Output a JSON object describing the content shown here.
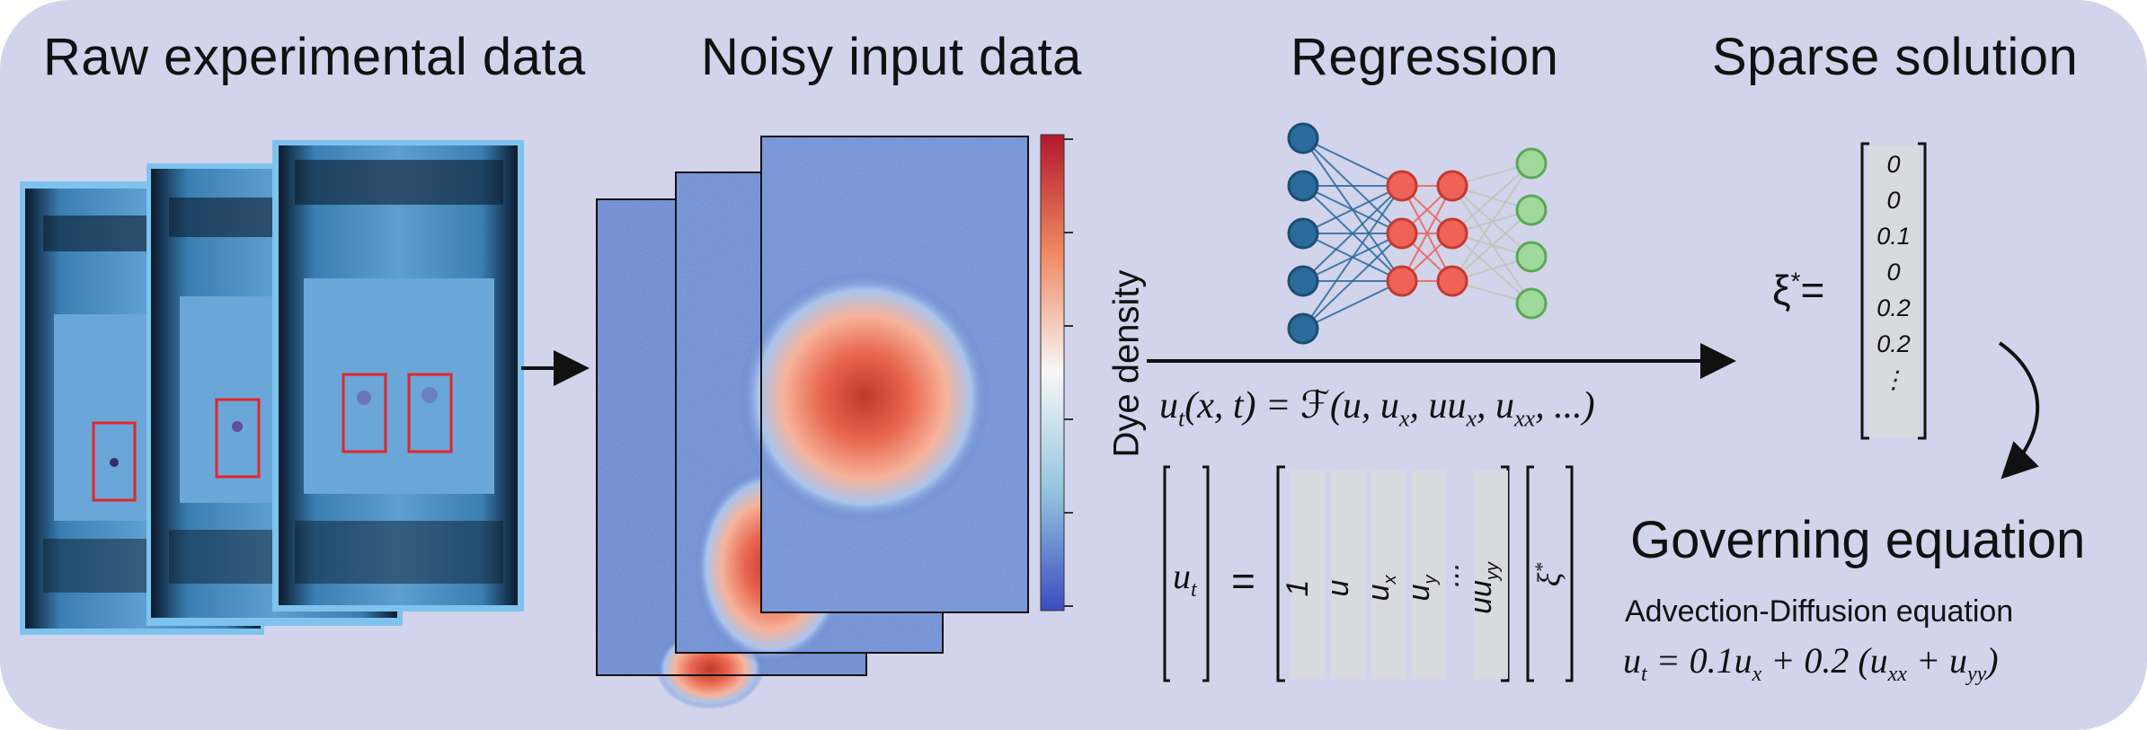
{
  "titles": {
    "raw": "Raw experimental data",
    "noisy": "Noisy input data",
    "regression": "Regression",
    "sparse": "Sparse solution"
  },
  "colorbar": {
    "label": "Dye density",
    "colors": {
      "high": "#b2182b",
      "mid": "#f7f7f7",
      "low": "#3b4cc0"
    }
  },
  "pde": {
    "lhs": "u",
    "lhs_sub": "t",
    "args": "(x, t) = ",
    "script_f": "ℱ",
    "rhs": "(u, u",
    "rhs_sub1": "x",
    "rhs_mid": ", uu",
    "rhs_sub2": "x",
    "rhs_mid2": ", u",
    "rhs_sub3": "xx",
    "rhs_end": ", ...)"
  },
  "system": {
    "lhs_label": "u",
    "lhs_sub": "t",
    "equals": "=",
    "library": [
      {
        "label": "1",
        "sub": ""
      },
      {
        "label": "u",
        "sub": ""
      },
      {
        "label": "u",
        "sub": "x"
      },
      {
        "label": "u",
        "sub": "y"
      },
      {
        "label": "...",
        "sub": ""
      },
      {
        "label": "uu",
        "sub": "yy"
      }
    ],
    "xi_label": "ξ",
    "xi_sup": "*"
  },
  "sparse": {
    "xi": "ξ",
    "sup": "*",
    "equals": "=",
    "values": [
      "0",
      "0",
      "0.1",
      "0",
      "0.2",
      "0.2",
      "⋮"
    ]
  },
  "governing": {
    "title": "Governing equation",
    "name": "Advection-Diffusion equation",
    "eq_lhs": "u",
    "eq_lhs_sub": "t",
    "eq_mid": " = 0.1u",
    "eq_sub_x": "x",
    "eq_mid2": " + 0.2 (u",
    "eq_sub_xx": "xx",
    "eq_mid3": " + u",
    "eq_sub_yy": "yy",
    "eq_end": ")"
  },
  "network": {
    "layers": [
      5,
      3,
      3,
      4
    ],
    "colors": {
      "input": "#2b6b9b",
      "hidden": "#ef6256",
      "output": "#9fd89a"
    }
  }
}
